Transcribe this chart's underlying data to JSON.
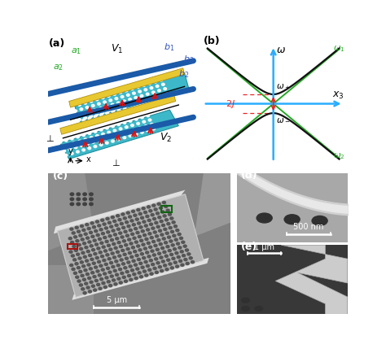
{
  "fig_width": 4.74,
  "fig_height": 4.34,
  "panel_a_label": "(a)",
  "panel_b_label": "(b)",
  "panel_c_label": "(c)",
  "panel_d_label": "(d)",
  "panel_e_label": "(e)",
  "panel_b": {
    "omega_axis_color": "#29ADFF",
    "x3_axis_color": "#29ADFF",
    "crossing_lines_color": "#22AA22",
    "dispersion_color": "#111111",
    "dashed_color": "#EE2222",
    "arrow_color": "#EE2222",
    "bg_color": "#ffffff"
  },
  "panel_c_bg": "#888888",
  "panel_d_bg": "#7B1010",
  "panel_e_bg": "#0A4A28",
  "scale_bar_c": "5 μm",
  "scale_bar_d": "500 nm",
  "scale_bar_e": "1 μm"
}
